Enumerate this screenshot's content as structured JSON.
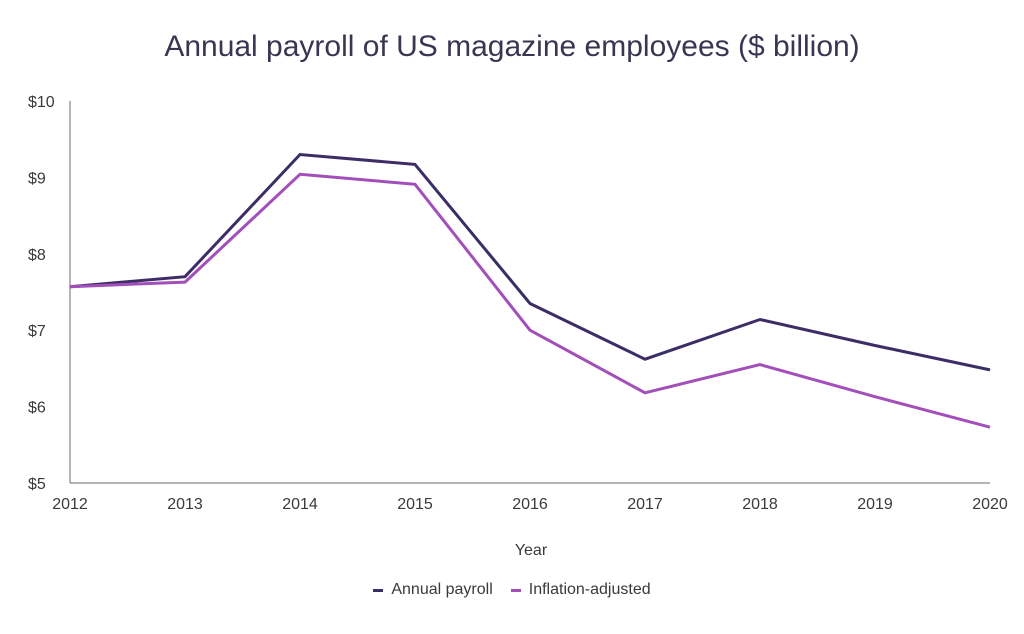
{
  "chart_data": {
    "type": "line",
    "title": "Annual payroll of US magazine employees ($ billion)",
    "xlabel": "Year",
    "ylabel": "",
    "categories": [
      "2012",
      "2013",
      "2014",
      "2015",
      "2016",
      "2017",
      "2018",
      "2019",
      "2020"
    ],
    "y_ticks": [
      "$5",
      "$6",
      "$7",
      "$8",
      "$9",
      "$10"
    ],
    "ylim": [
      5,
      10
    ],
    "grid": false,
    "legend_position": "bottom-center",
    "series": [
      {
        "name": "Annual payroll",
        "color": "#3d2d66",
        "values": [
          7.57,
          7.7,
          9.3,
          9.17,
          7.35,
          6.62,
          7.14,
          6.8,
          6.48
        ]
      },
      {
        "name": "Inflation-adjusted",
        "color": "#a24fba",
        "values": [
          7.57,
          7.63,
          9.04,
          8.91,
          7.0,
          6.18,
          6.55,
          6.13,
          5.73
        ]
      }
    ]
  }
}
